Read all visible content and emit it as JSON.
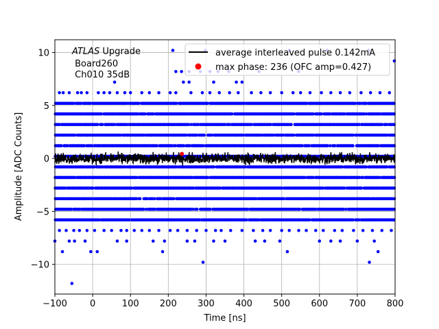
{
  "chart_data": {
    "type": "scatter",
    "xlabel": "Time [ns]",
    "ylabel": "Amplitude [ADC Counts]",
    "xlim": [
      -100,
      800
    ],
    "ylim": [
      -12.8,
      11.2
    ],
    "xticks": [
      -100,
      0,
      100,
      200,
      300,
      400,
      500,
      600,
      700,
      800
    ],
    "yticks": [
      -10,
      -5,
      0,
      5,
      10
    ],
    "grid": true,
    "legend_placement": "upper right",
    "annotation": {
      "line1_italic": "ATLAS",
      "line1_rest": " Upgrade",
      "line2": " Board260",
      "line3": " Ch010 35dB"
    },
    "series": [
      {
        "name": "average interleaved pulse 0.142mA",
        "kind": "line",
        "color": "#000000",
        "x_range": [
          -100,
          800
        ],
        "mean": 0.0,
        "noise_amplitude": 0.35
      },
      {
        "name": "max phase: 236 (OFC amp=0.427)",
        "kind": "marker",
        "color": "#ff0000",
        "x": 236,
        "y": 0.427
      },
      {
        "name": "samples",
        "kind": "scatter",
        "color": "#0000ff",
        "dense_levels": [
          -5.8,
          -4.8,
          -3.8,
          -2.8,
          -1.8,
          -0.8,
          0.2,
          1.2,
          2.2,
          3.2,
          4.2,
          5.2
        ],
        "sparse_points": [
          {
            "x": 212,
            "y": 10.2
          },
          {
            "x": 298,
            "y": 10.2
          },
          {
            "x": 520,
            "y": 10.2
          },
          {
            "x": 620,
            "y": 10.2
          },
          {
            "x": 730,
            "y": 10.2
          },
          {
            "x": 798,
            "y": 9.2
          },
          {
            "x": 220,
            "y": 8.2
          },
          {
            "x": 235,
            "y": 8.2
          },
          {
            "x": 255,
            "y": 8.2
          },
          {
            "x": 285,
            "y": 8.2
          },
          {
            "x": 310,
            "y": 8.2
          },
          {
            "x": 332,
            "y": 8.2
          },
          {
            "x": 360,
            "y": 8.2
          },
          {
            "x": 440,
            "y": 8.2
          },
          {
            "x": 545,
            "y": 8.2
          },
          {
            "x": 58,
            "y": 7.2
          },
          {
            "x": 240,
            "y": 7.2
          },
          {
            "x": 255,
            "y": 7.2
          },
          {
            "x": 320,
            "y": 7.2
          },
          {
            "x": 380,
            "y": 7.2
          },
          {
            "x": 395,
            "y": 7.2
          },
          {
            "x": -88,
            "y": 6.2
          },
          {
            "x": -78,
            "y": 6.2
          },
          {
            "x": -62,
            "y": 6.2
          },
          {
            "x": -40,
            "y": 6.2
          },
          {
            "x": -30,
            "y": 6.2
          },
          {
            "x": -15,
            "y": 6.2
          },
          {
            "x": 15,
            "y": 6.2
          },
          {
            "x": 30,
            "y": 6.2
          },
          {
            "x": 45,
            "y": 6.2
          },
          {
            "x": 65,
            "y": 6.2
          },
          {
            "x": 85,
            "y": 6.2
          },
          {
            "x": 100,
            "y": 6.2
          },
          {
            "x": 130,
            "y": 6.2
          },
          {
            "x": 150,
            "y": 6.2
          },
          {
            "x": 175,
            "y": 6.2
          },
          {
            "x": 205,
            "y": 6.2
          },
          {
            "x": 220,
            "y": 6.2
          },
          {
            "x": 260,
            "y": 6.2
          },
          {
            "x": 290,
            "y": 6.2
          },
          {
            "x": 310,
            "y": 6.2
          },
          {
            "x": 335,
            "y": 6.2
          },
          {
            "x": 362,
            "y": 6.2
          },
          {
            "x": 385,
            "y": 6.2
          },
          {
            "x": 420,
            "y": 6.2
          },
          {
            "x": 445,
            "y": 6.2
          },
          {
            "x": 470,
            "y": 6.2
          },
          {
            "x": 500,
            "y": 6.2
          },
          {
            "x": 530,
            "y": 6.2
          },
          {
            "x": 550,
            "y": 6.2
          },
          {
            "x": 575,
            "y": 6.2
          },
          {
            "x": 605,
            "y": 6.2
          },
          {
            "x": 630,
            "y": 6.2
          },
          {
            "x": 655,
            "y": 6.2
          },
          {
            "x": 680,
            "y": 6.2
          },
          {
            "x": 710,
            "y": 6.2
          },
          {
            "x": 735,
            "y": 6.2
          },
          {
            "x": 760,
            "y": 6.2
          },
          {
            "x": 785,
            "y": 6.2
          },
          {
            "x": -88,
            "y": -6.8
          },
          {
            "x": -70,
            "y": -6.8
          },
          {
            "x": -50,
            "y": -6.8
          },
          {
            "x": -35,
            "y": -6.8
          },
          {
            "x": -15,
            "y": -6.8
          },
          {
            "x": 5,
            "y": -6.8
          },
          {
            "x": 30,
            "y": -6.8
          },
          {
            "x": 50,
            "y": -6.8
          },
          {
            "x": 75,
            "y": -6.8
          },
          {
            "x": 90,
            "y": -6.8
          },
          {
            "x": 110,
            "y": -6.8
          },
          {
            "x": 130,
            "y": -6.8
          },
          {
            "x": 150,
            "y": -6.8
          },
          {
            "x": 175,
            "y": -6.8
          },
          {
            "x": 205,
            "y": -6.8
          },
          {
            "x": 225,
            "y": -6.8
          },
          {
            "x": 250,
            "y": -6.8
          },
          {
            "x": 275,
            "y": -6.8
          },
          {
            "x": 300,
            "y": -6.8
          },
          {
            "x": 325,
            "y": -6.8
          },
          {
            "x": 340,
            "y": -6.8
          },
          {
            "x": 365,
            "y": -6.8
          },
          {
            "x": 395,
            "y": -6.8
          },
          {
            "x": 425,
            "y": -6.8
          },
          {
            "x": 450,
            "y": -6.8
          },
          {
            "x": 470,
            "y": -6.8
          },
          {
            "x": 500,
            "y": -6.8
          },
          {
            "x": 520,
            "y": -6.8
          },
          {
            "x": 545,
            "y": -6.8
          },
          {
            "x": 565,
            "y": -6.8
          },
          {
            "x": 590,
            "y": -6.8
          },
          {
            "x": 610,
            "y": -6.8
          },
          {
            "x": 640,
            "y": -6.8
          },
          {
            "x": 660,
            "y": -6.8
          },
          {
            "x": 690,
            "y": -6.8
          },
          {
            "x": 715,
            "y": -6.8
          },
          {
            "x": 740,
            "y": -6.8
          },
          {
            "x": 765,
            "y": -6.8
          },
          {
            "x": 790,
            "y": -6.8
          },
          {
            "x": -100,
            "y": -7.8
          },
          {
            "x": -62,
            "y": -7.8
          },
          {
            "x": -48,
            "y": -7.8
          },
          {
            "x": -20,
            "y": -7.8
          },
          {
            "x": 65,
            "y": -7.8
          },
          {
            "x": 90,
            "y": -7.8
          },
          {
            "x": 160,
            "y": -7.8
          },
          {
            "x": 190,
            "y": -7.8
          },
          {
            "x": 250,
            "y": -7.8
          },
          {
            "x": 270,
            "y": -7.8
          },
          {
            "x": 320,
            "y": -7.8
          },
          {
            "x": 350,
            "y": -7.8
          },
          {
            "x": 430,
            "y": -7.8
          },
          {
            "x": 455,
            "y": -7.8
          },
          {
            "x": 495,
            "y": -7.8
          },
          {
            "x": 600,
            "y": -7.8
          },
          {
            "x": 630,
            "y": -7.8
          },
          {
            "x": 655,
            "y": -7.8
          },
          {
            "x": 700,
            "y": -7.8
          },
          {
            "x": 745,
            "y": -7.8
          },
          {
            "x": -80,
            "y": -8.8
          },
          {
            "x": -5,
            "y": -8.8
          },
          {
            "x": 12,
            "y": -8.8
          },
          {
            "x": 185,
            "y": -8.8
          },
          {
            "x": 515,
            "y": -8.8
          },
          {
            "x": 755,
            "y": -8.8
          },
          {
            "x": 292,
            "y": -9.8
          },
          {
            "x": 732,
            "y": -9.8
          },
          {
            "x": -55,
            "y": -11.8
          }
        ]
      }
    ]
  }
}
